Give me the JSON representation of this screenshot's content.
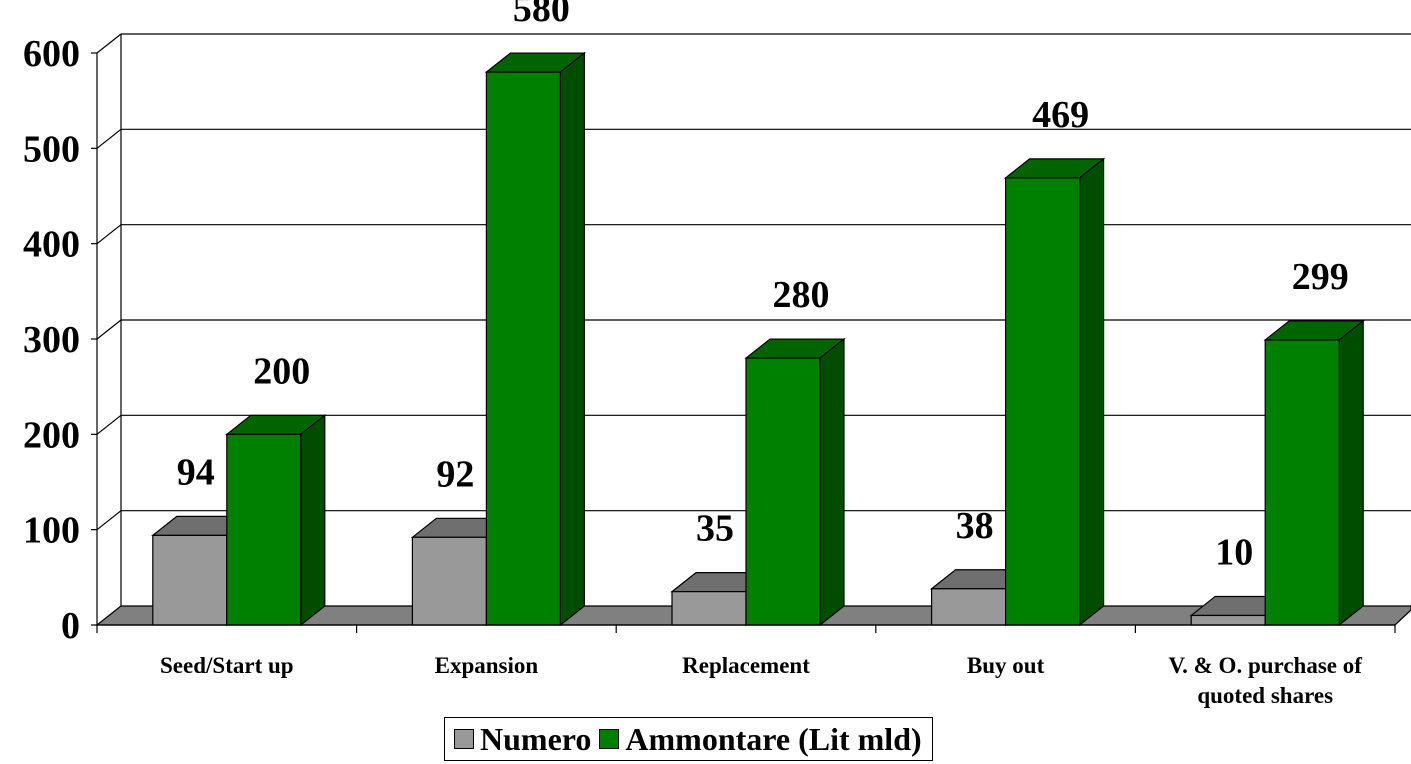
{
  "chart_data": {
    "type": "bar",
    "style": "3d-clustered-column",
    "categories": [
      [
        "Seed/Start up"
      ],
      [
        "Expansion"
      ],
      [
        "Replacement"
      ],
      [
        "Buy out"
      ],
      [
        "V. & O. purchase of",
        "quoted shares"
      ]
    ],
    "series": [
      {
        "name": "Numero",
        "values": [
          94,
          92,
          35,
          38,
          10
        ],
        "color": "#999999",
        "top_color": "#6f6f6f",
        "side_color": "#7a7a7a"
      },
      {
        "name": "Ammontare (Lit mld)",
        "values": [
          200,
          580,
          280,
          469,
          299
        ],
        "color": "#008000",
        "top_color": "#006400",
        "side_color": "#004d00"
      }
    ],
    "ylim": [
      0,
      600
    ],
    "yticks": [
      "0",
      "100",
      "200",
      "300",
      "400",
      "500",
      "600"
    ],
    "grid": true,
    "floor_color": "#808080",
    "legend_position": "bottom-center"
  }
}
